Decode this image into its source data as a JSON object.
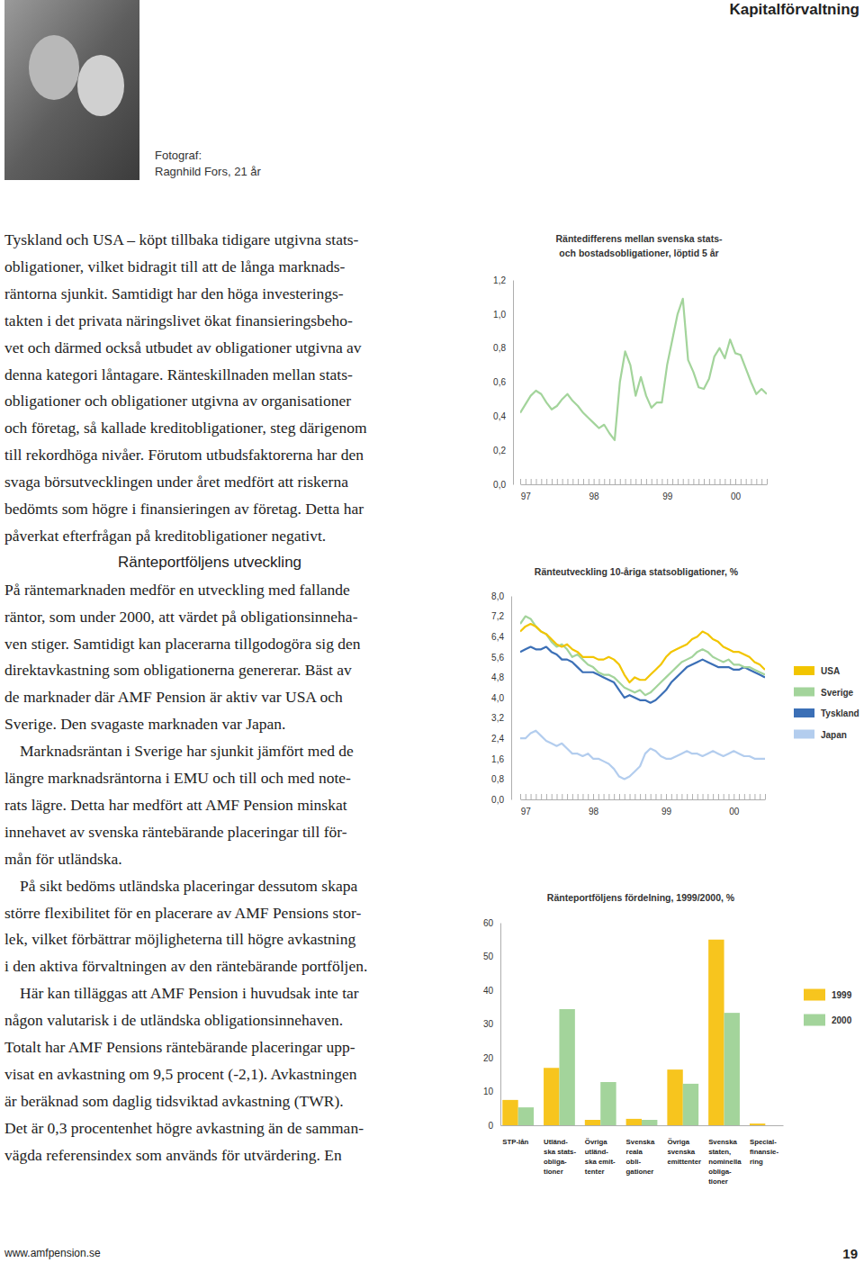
{
  "header": {
    "section": "Kapitalförvaltning"
  },
  "photo_caption": [
    "Fotograf:",
    "Ragnhild Fors, 21 år"
  ],
  "body": {
    "intro": [
      "Tyskland och USA – köpt tillbaka tidigare utgivna stats-",
      "obligationer, vilket bidragit till att de långa marknads-",
      "räntorna sjunkit. Samtidigt har den höga investerings-",
      "takten i det privata näringslivet ökat finansieringsbeho-",
      "vet och därmed också utbudet av obligationer utgivna av",
      "denna kategori låntagare. Ränteskillnaden mellan stats-",
      "obligationer och obligationer utgivna av organisationer",
      "och företag, så kallade kreditobligationer, steg därigenom",
      "till rekordhöga nivåer. Förutom utbudsfaktorerna har den",
      "svaga börsutvecklingen under året medfört att riskerna",
      "bedömts som högre i finansieringen av företag. Detta har",
      "påverkat efterfrågan på kreditobligationer negativt."
    ],
    "heading": "Ränteportföljens utveckling",
    "paragraphs": [
      [
        "På räntemarknaden medför en utveckling med fallande",
        "räntor, som under 2000, att värdet på obligationsinneha-",
        "ven stiger. Samtidigt kan placerarna tillgodogöra sig den",
        "direktavkastning som obligationerna genererar. Bäst av",
        "de marknader där AMF Pension är aktiv var USA och",
        "Sverige. Den svagaste marknaden var Japan."
      ],
      [
        "Marknadsräntan i Sverige har sjunkit jämfört med de",
        "längre marknadsräntorna i EMU och till och med note-",
        "rats lägre. Detta har medfört att AMF Pension minskat",
        "innehavet av svenska räntebärande placeringar till för-",
        "mån för utländska."
      ],
      [
        "På sikt bedöms utländska placeringar dessutom skapa",
        "större flexibilitet för en placerare av AMF Pensions stor-",
        "lek, vilket förbättrar möjligheterna till högre avkastning",
        "i den aktiva förvaltningen av den räntebärande portföljen."
      ],
      [
        "Här kan tilläggas att AMF Pension i huvudsak inte tar",
        "någon valutarisk i de utländska obligationsinnehaven.",
        "Totalt har AMF Pensions räntebärande placeringar upp-",
        "visat en avkastning om 9,5 procent (-2,1). Avkastningen",
        "är beräknad som daglig tidsviktad avkastning (TWR).",
        "Det är 0,3 procentenhet högre avkastning än de samman-",
        "vägda referensindex som används för utvärdering. En"
      ]
    ]
  },
  "chart_data": [
    {
      "type": "line",
      "title": [
        "Räntedifferens mellan svenska stats-",
        "och bostadsobligationer, löptid 5 år"
      ],
      "categories": [
        null,
        "97",
        null,
        null,
        null,
        null,
        null,
        null,
        null,
        null,
        null,
        null,
        null,
        null,
        "98",
        null,
        null,
        null,
        null,
        null,
        null,
        null,
        null,
        null,
        null,
        null,
        null,
        null,
        "99",
        null,
        null,
        null,
        null,
        null,
        null,
        null,
        null,
        null,
        null,
        null,
        null,
        "00",
        null,
        null,
        null,
        null,
        null,
        null
      ],
      "values": [
        0.42,
        0.47,
        0.52,
        0.55,
        0.53,
        0.48,
        0.44,
        0.46,
        0.5,
        0.53,
        0.49,
        0.46,
        0.42,
        0.39,
        0.36,
        0.33,
        0.35,
        0.3,
        0.26,
        0.6,
        0.78,
        0.7,
        0.52,
        0.63,
        0.52,
        0.45,
        0.48,
        0.48,
        0.7,
        0.85,
        1.0,
        1.09,
        0.73,
        0.66,
        0.57,
        0.56,
        0.62,
        0.75,
        0.8,
        0.74,
        0.85,
        0.77,
        0.76,
        0.68,
        0.6,
        0.53,
        0.56,
        0.53
      ],
      "color": "#a3d49b",
      "ylim": [
        0,
        1.2
      ],
      "yticks": [
        {
          "value": 0,
          "label": "0,0"
        },
        {
          "value": 0.2,
          "label": "0,2"
        },
        {
          "value": 0.4,
          "label": "0,4"
        },
        {
          "value": 0.6,
          "label": "0,6"
        },
        {
          "value": 0.8,
          "label": "0,8"
        },
        {
          "value": 1.0,
          "label": "1,0"
        },
        {
          "value": 1.2,
          "label": "1,2"
        }
      ]
    },
    {
      "type": "line",
      "title": [
        "Ränteutveckling 10-åriga statsobligationer, %"
      ],
      "categories": [
        null,
        "97",
        null,
        null,
        null,
        null,
        null,
        null,
        null,
        null,
        null,
        null,
        null,
        null,
        "98",
        null,
        null,
        null,
        null,
        null,
        null,
        null,
        null,
        null,
        null,
        null,
        null,
        null,
        "99",
        null,
        null,
        null,
        null,
        null,
        null,
        null,
        null,
        null,
        null,
        null,
        null,
        "00",
        null,
        null,
        null,
        null,
        null,
        null
      ],
      "series": [
        {
          "name": "USA",
          "color": "#f2c500",
          "values": [
            6.6,
            6.8,
            6.9,
            6.8,
            6.6,
            6.5,
            6.3,
            6.1,
            6.0,
            6.1,
            5.9,
            5.8,
            5.6,
            5.6,
            5.6,
            5.5,
            5.5,
            5.6,
            5.5,
            5.3,
            4.9,
            4.6,
            4.8,
            4.7,
            4.7,
            4.9,
            5.1,
            5.3,
            5.6,
            5.8,
            5.9,
            6.0,
            6.1,
            6.3,
            6.4,
            6.6,
            6.5,
            6.3,
            6.2,
            6.0,
            5.9,
            5.8,
            5.8,
            5.7,
            5.6,
            5.4,
            5.3,
            5.1
          ]
        },
        {
          "name": "Sverige",
          "color": "#a3d49b",
          "values": [
            6.9,
            7.2,
            7.1,
            6.8,
            6.6,
            6.5,
            6.2,
            6.0,
            6.1,
            5.9,
            5.6,
            5.7,
            5.5,
            5.3,
            5.2,
            5.0,
            4.9,
            4.9,
            4.8,
            4.6,
            4.4,
            4.3,
            4.2,
            4.3,
            4.1,
            4.2,
            4.4,
            4.6,
            4.8,
            5.0,
            5.2,
            5.4,
            5.5,
            5.6,
            5.8,
            5.9,
            5.8,
            5.6,
            5.5,
            5.4,
            5.5,
            5.3,
            5.3,
            5.2,
            5.2,
            5.1,
            5.0,
            4.9
          ]
        },
        {
          "name": "Tyskland",
          "color": "#3b6fb6",
          "values": [
            5.8,
            5.9,
            6.0,
            5.9,
            5.9,
            6.0,
            5.8,
            5.7,
            5.5,
            5.5,
            5.4,
            5.2,
            5.0,
            5.0,
            5.0,
            4.9,
            4.8,
            4.7,
            4.6,
            4.3,
            4.0,
            4.1,
            4.0,
            3.9,
            3.9,
            3.8,
            3.9,
            4.1,
            4.3,
            4.6,
            4.8,
            5.0,
            5.2,
            5.3,
            5.4,
            5.5,
            5.4,
            5.3,
            5.2,
            5.2,
            5.2,
            5.1,
            5.1,
            5.2,
            5.1,
            5.0,
            4.9,
            4.8
          ]
        },
        {
          "name": "Japan",
          "color": "#b3cdee",
          "values": [
            2.4,
            2.4,
            2.6,
            2.7,
            2.5,
            2.3,
            2.2,
            2.1,
            2.2,
            2.0,
            1.8,
            1.8,
            1.7,
            1.8,
            1.6,
            1.6,
            1.5,
            1.4,
            1.2,
            0.9,
            0.8,
            0.9,
            1.1,
            1.3,
            1.8,
            2.0,
            1.9,
            1.7,
            1.6,
            1.6,
            1.7,
            1.8,
            1.9,
            1.8,
            1.8,
            1.7,
            1.8,
            1.9,
            1.8,
            1.7,
            1.8,
            1.9,
            1.8,
            1.7,
            1.7,
            1.6,
            1.6,
            1.6
          ]
        }
      ],
      "ylim": [
        0,
        8.0
      ],
      "yticks": [
        {
          "value": 0,
          "label": "0,0"
        },
        {
          "value": 0.8,
          "label": "0,8"
        },
        {
          "value": 1.6,
          "label": "1,6"
        },
        {
          "value": 2.4,
          "label": "2,4"
        },
        {
          "value": 3.2,
          "label": "3,2"
        },
        {
          "value": 4.0,
          "label": "4,0"
        },
        {
          "value": 4.8,
          "label": "4,8"
        },
        {
          "value": 5.6,
          "label": "5,6"
        },
        {
          "value": 6.4,
          "label": "6,4"
        },
        {
          "value": 7.2,
          "label": "7,2"
        },
        {
          "value": 8.0,
          "label": "8,0"
        }
      ],
      "legend": "right"
    },
    {
      "type": "bar",
      "title": [
        "Ränteportföljens fördelning, 1999/2000, %"
      ],
      "categories": [
        "STP-lån",
        "Utländ-\nska stats-\nobliga-\ntioner",
        "Övriga\nutländ-\nska emit-\ntenter",
        "Svenska\nreala\nobli-\ngationer",
        "Övriga\nsvenska\nemittenter",
        "Svenska\nstaten,\nnominella\nobliga-\ntioner",
        "Special-\nfinansie-\nring"
      ],
      "series": [
        {
          "name": "1999",
          "color": "#f7c51e",
          "values": [
            7.5,
            17,
            1.6,
            1.9,
            16.5,
            55,
            0.5
          ]
        },
        {
          "name": "2000",
          "color": "#a3d49b",
          "values": [
            5.3,
            34.4,
            12.8,
            1.6,
            12.3,
            33.3,
            0
          ]
        }
      ],
      "ylim": [
        0,
        60
      ],
      "yticks": [
        0,
        10,
        20,
        30,
        40,
        50,
        60
      ],
      "legend": "right"
    }
  ],
  "footer": {
    "url": "www.amfpension.se",
    "page": "19"
  }
}
